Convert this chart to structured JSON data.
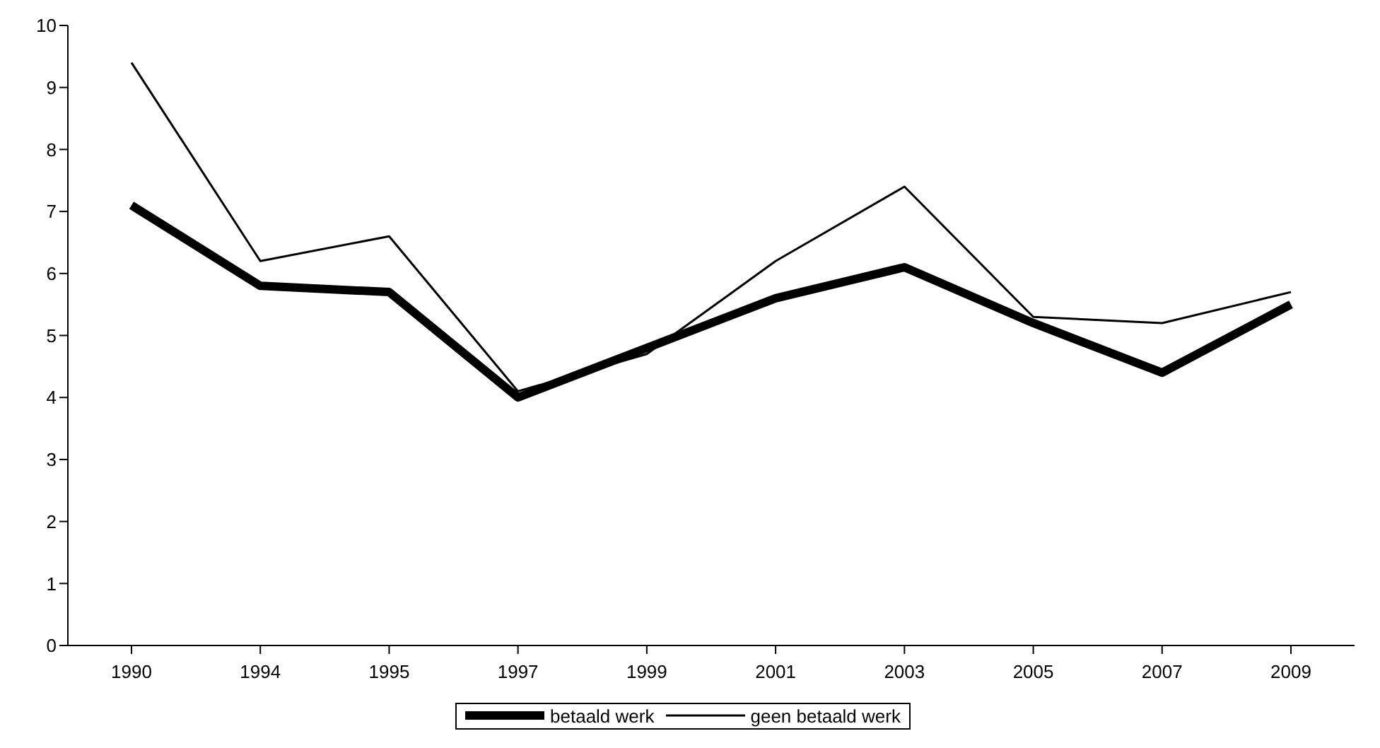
{
  "chart_data": {
    "type": "line",
    "categories": [
      "1990",
      "1994",
      "1995",
      "1997",
      "1999",
      "2001",
      "2003",
      "2005",
      "2007",
      "2009"
    ],
    "series": [
      {
        "name": "betaald werk",
        "color": "#000000",
        "values": [
          7.1,
          5.8,
          5.7,
          4.0,
          4.8,
          5.6,
          6.1,
          5.2,
          4.4,
          5.5
        ]
      },
      {
        "name": "geen betaald werk",
        "color": "#000000",
        "values": [
          9.4,
          6.2,
          6.6,
          4.1,
          4.7,
          6.2,
          7.4,
          5.3,
          5.2,
          5.7
        ]
      }
    ],
    "ylim": [
      0,
      10
    ],
    "yticks": [
      0,
      1,
      2,
      3,
      4,
      5,
      6,
      7,
      8,
      9,
      10
    ],
    "grid": false,
    "legend": "bottom",
    "marker": "none"
  }
}
